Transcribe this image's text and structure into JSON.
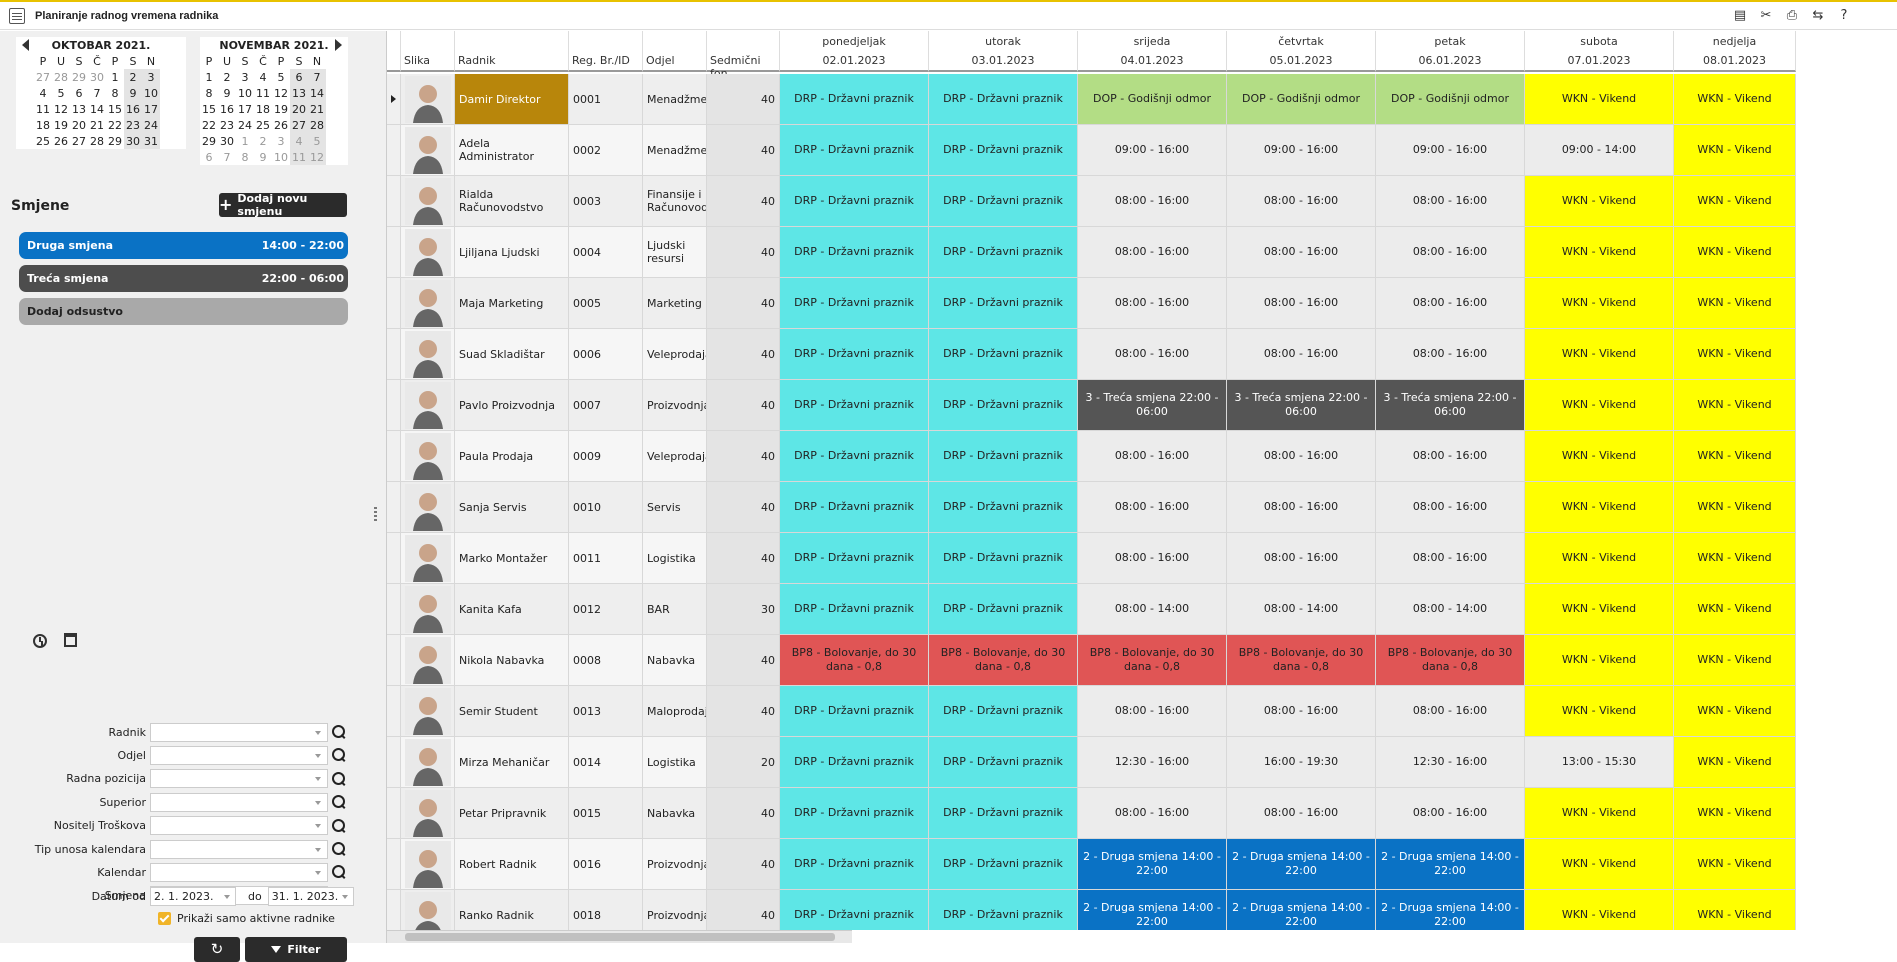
{
  "window": {
    "title": "Planiranje radnog vremena radnika"
  },
  "toolbar_icons": [
    "document-icon",
    "tools-icon",
    "print-icon",
    "transfer-icon",
    "help-icon"
  ],
  "toolbar_glyphs": [
    "▤",
    "✂",
    "⎙",
    "⇆",
    "?"
  ],
  "calendars": [
    {
      "title": "OKTOBAR 2021.",
      "weekdays": [
        "P",
        "U",
        "S",
        "Č",
        "P",
        "S",
        "N"
      ],
      "weeks": [
        [
          "27",
          "28",
          "29",
          "30",
          "1",
          "2",
          "3"
        ],
        [
          "4",
          "5",
          "6",
          "7",
          "8",
          "9",
          "10"
        ],
        [
          "11",
          "12",
          "13",
          "14",
          "15",
          "16",
          "17"
        ],
        [
          "18",
          "19",
          "20",
          "21",
          "22",
          "23",
          "24"
        ],
        [
          "25",
          "26",
          "27",
          "28",
          "29",
          "30",
          "31"
        ]
      ]
    },
    {
      "title": "NOVEMBAR 2021.",
      "weekdays": [
        "P",
        "U",
        "S",
        "Č",
        "P",
        "S",
        "N"
      ],
      "weeks": [
        [
          "1",
          "2",
          "3",
          "4",
          "5",
          "6",
          "7"
        ],
        [
          "8",
          "9",
          "10",
          "11",
          "12",
          "13",
          "14"
        ],
        [
          "15",
          "16",
          "17",
          "18",
          "19",
          "20",
          "21"
        ],
        [
          "22",
          "23",
          "24",
          "25",
          "26",
          "27",
          "28"
        ],
        [
          "29",
          "30",
          "1",
          "2",
          "3",
          "4",
          "5"
        ],
        [
          "6",
          "7",
          "8",
          "9",
          "10",
          "11",
          "12"
        ]
      ]
    }
  ],
  "shifts_panel": {
    "title": "Smjene",
    "add_button": "Dodaj novu smjenu",
    "shifts": [
      {
        "name": "Druga smjena",
        "time": "14:00 - 22:00",
        "color": "#0a72c5"
      },
      {
        "name": "Treća smjena",
        "time": "22:00 - 06:00",
        "color": "#4d4d4d"
      },
      {
        "name": "Dodaj odsustvo",
        "time": "",
        "color": "#a9a9a9"
      }
    ]
  },
  "filters": {
    "fields": [
      "Radnik",
      "Odjel",
      "Radna pozicija",
      "Superior",
      "Nositelj Troškova",
      "Tip unosa kalendara",
      "Kalendar",
      "Smjena"
    ],
    "date_from_label": "Datum od",
    "date_from": "2. 1. 2023.",
    "date_to_label": "do",
    "date_to": "31. 1. 2023.",
    "active_only_label": "Prikaži samo aktivne radnike",
    "filter_button": "Filter"
  },
  "grid": {
    "columns": {
      "photo": "Slika",
      "name": "Radnik",
      "reg": "Reg. Br./ID",
      "dept": "Odjel",
      "fund": "Sedmični fon"
    },
    "days": [
      {
        "name": "ponedjeljak",
        "date": "02.01.2023"
      },
      {
        "name": "utorak",
        "date": "03.01.2023"
      },
      {
        "name": "srijeda",
        "date": "04.01.2023"
      },
      {
        "name": "četvrtak",
        "date": "05.01.2023"
      },
      {
        "name": "petak",
        "date": "06.01.2023"
      },
      {
        "name": "subota",
        "date": "07.01.2023"
      },
      {
        "name": "nedjelja",
        "date": "08.01.2023"
      }
    ],
    "colors": {
      "drp": "#5ee6e6",
      "dop": "#b3dd85",
      "wkn": "#ffff00",
      "shift3": "#555555",
      "shift2": "#0a72c5",
      "sick": "#e05555",
      "time": "#ececec"
    },
    "rows": [
      {
        "name": "Damir Direktor",
        "reg": "0001",
        "dept": "Menadžment",
        "fund": "40",
        "days": [
          [
            "DRP - Državni praznik",
            "drp"
          ],
          [
            "DRP - Državni praznik",
            "drp"
          ],
          [
            "DOP - Godišnji odmor",
            "dop"
          ],
          [
            "DOP - Godišnji odmor",
            "dop"
          ],
          [
            "DOP - Godišnji odmor",
            "dop"
          ],
          [
            "WKN - Vikend",
            "wkn"
          ],
          [
            "WKN - Vikend",
            "wkn"
          ]
        ]
      },
      {
        "name": "Adela Administrator",
        "reg": "0002",
        "dept": "Menadžment",
        "fund": "40",
        "days": [
          [
            "DRP - Državni praznik",
            "drp"
          ],
          [
            "DRP - Državni praznik",
            "drp"
          ],
          [
            "09:00 - 16:00",
            "time"
          ],
          [
            "09:00 - 16:00",
            "time"
          ],
          [
            "09:00 - 16:00",
            "time"
          ],
          [
            "09:00 - 14:00",
            "time"
          ],
          [
            "WKN - Vikend",
            "wkn"
          ]
        ]
      },
      {
        "name": "Rialda Računovodstvo",
        "reg": "0003",
        "dept": "Finansije i Računovodstvo",
        "fund": "40",
        "days": [
          [
            "DRP - Državni praznik",
            "drp"
          ],
          [
            "DRP - Državni praznik",
            "drp"
          ],
          [
            "08:00 - 16:00",
            "time"
          ],
          [
            "08:00 - 16:00",
            "time"
          ],
          [
            "08:00 - 16:00",
            "time"
          ],
          [
            "WKN - Vikend",
            "wkn"
          ],
          [
            "WKN - Vikend",
            "wkn"
          ]
        ]
      },
      {
        "name": "Ljiljana Ljudski",
        "reg": "0004",
        "dept": "Ljudski resursi",
        "fund": "40",
        "days": [
          [
            "DRP - Državni praznik",
            "drp"
          ],
          [
            "DRP - Državni praznik",
            "drp"
          ],
          [
            "08:00 - 16:00",
            "time"
          ],
          [
            "08:00 - 16:00",
            "time"
          ],
          [
            "08:00 - 16:00",
            "time"
          ],
          [
            "WKN - Vikend",
            "wkn"
          ],
          [
            "WKN - Vikend",
            "wkn"
          ]
        ]
      },
      {
        "name": "Maja Marketing",
        "reg": "0005",
        "dept": "Marketing",
        "fund": "40",
        "days": [
          [
            "DRP - Državni praznik",
            "drp"
          ],
          [
            "DRP - Državni praznik",
            "drp"
          ],
          [
            "08:00 - 16:00",
            "time"
          ],
          [
            "08:00 - 16:00",
            "time"
          ],
          [
            "08:00 - 16:00",
            "time"
          ],
          [
            "WKN - Vikend",
            "wkn"
          ],
          [
            "WKN - Vikend",
            "wkn"
          ]
        ]
      },
      {
        "name": "Suad Skladištar",
        "reg": "0006",
        "dept": "Veleprodaja",
        "fund": "40",
        "days": [
          [
            "DRP - Državni praznik",
            "drp"
          ],
          [
            "DRP - Državni praznik",
            "drp"
          ],
          [
            "08:00 - 16:00",
            "time"
          ],
          [
            "08:00 - 16:00",
            "time"
          ],
          [
            "08:00 - 16:00",
            "time"
          ],
          [
            "WKN - Vikend",
            "wkn"
          ],
          [
            "WKN - Vikend",
            "wkn"
          ]
        ]
      },
      {
        "name": "Pavlo Proizvodnja",
        "reg": "0007",
        "dept": "Proizvodnja",
        "fund": "40",
        "days": [
          [
            "DRP - Državni praznik",
            "drp"
          ],
          [
            "DRP - Državni praznik",
            "drp"
          ],
          [
            "3 - Treća smjena 22:00 - 06:00",
            "shift3"
          ],
          [
            "3 - Treća smjena 22:00 - 06:00",
            "shift3"
          ],
          [
            "3 - Treća smjena 22:00 - 06:00",
            "shift3"
          ],
          [
            "WKN - Vikend",
            "wkn"
          ],
          [
            "WKN - Vikend",
            "wkn"
          ]
        ]
      },
      {
        "name": "Paula Prodaja",
        "reg": "0009",
        "dept": "Veleprodaja",
        "fund": "40",
        "days": [
          [
            "DRP - Državni praznik",
            "drp"
          ],
          [
            "DRP - Državni praznik",
            "drp"
          ],
          [
            "08:00 - 16:00",
            "time"
          ],
          [
            "08:00 - 16:00",
            "time"
          ],
          [
            "08:00 - 16:00",
            "time"
          ],
          [
            "WKN - Vikend",
            "wkn"
          ],
          [
            "WKN - Vikend",
            "wkn"
          ]
        ]
      },
      {
        "name": "Sanja Servis",
        "reg": "0010",
        "dept": "Servis",
        "fund": "40",
        "days": [
          [
            "DRP - Državni praznik",
            "drp"
          ],
          [
            "DRP - Državni praznik",
            "drp"
          ],
          [
            "08:00 - 16:00",
            "time"
          ],
          [
            "08:00 - 16:00",
            "time"
          ],
          [
            "08:00 - 16:00",
            "time"
          ],
          [
            "WKN - Vikend",
            "wkn"
          ],
          [
            "WKN - Vikend",
            "wkn"
          ]
        ]
      },
      {
        "name": "Marko Montažer",
        "reg": "0011",
        "dept": "Logistika",
        "fund": "40",
        "days": [
          [
            "DRP - Državni praznik",
            "drp"
          ],
          [
            "DRP - Državni praznik",
            "drp"
          ],
          [
            "08:00 - 16:00",
            "time"
          ],
          [
            "08:00 - 16:00",
            "time"
          ],
          [
            "08:00 - 16:00",
            "time"
          ],
          [
            "WKN - Vikend",
            "wkn"
          ],
          [
            "WKN - Vikend",
            "wkn"
          ]
        ]
      },
      {
        "name": "Kanita Kafa",
        "reg": "0012",
        "dept": "BAR",
        "fund": "30",
        "days": [
          [
            "DRP - Državni praznik",
            "drp"
          ],
          [
            "DRP - Državni praznik",
            "drp"
          ],
          [
            "08:00 - 14:00",
            "time"
          ],
          [
            "08:00 - 14:00",
            "time"
          ],
          [
            "08:00 - 14:00",
            "time"
          ],
          [
            "WKN - Vikend",
            "wkn"
          ],
          [
            "WKN - Vikend",
            "wkn"
          ]
        ]
      },
      {
        "name": "Nikola Nabavka",
        "reg": "0008",
        "dept": "Nabavka",
        "fund": "40",
        "days": [
          [
            "BP8 - Bolovanje, do 30 dana - 0,8",
            "sick"
          ],
          [
            "BP8 - Bolovanje, do 30 dana - 0,8",
            "sick"
          ],
          [
            "BP8 - Bolovanje, do 30 dana - 0,8",
            "sick"
          ],
          [
            "BP8 - Bolovanje, do 30 dana - 0,8",
            "sick"
          ],
          [
            "BP8 - Bolovanje, do 30 dana - 0,8",
            "sick"
          ],
          [
            "WKN - Vikend",
            "wkn"
          ],
          [
            "WKN - Vikend",
            "wkn"
          ]
        ]
      },
      {
        "name": "Semir Student",
        "reg": "0013",
        "dept": "Maloprodaja",
        "fund": "40",
        "days": [
          [
            "DRP - Državni praznik",
            "drp"
          ],
          [
            "DRP - Državni praznik",
            "drp"
          ],
          [
            "08:00 - 16:00",
            "time"
          ],
          [
            "08:00 - 16:00",
            "time"
          ],
          [
            "08:00 - 16:00",
            "time"
          ],
          [
            "WKN - Vikend",
            "wkn"
          ],
          [
            "WKN - Vikend",
            "wkn"
          ]
        ]
      },
      {
        "name": "Mirza Mehaničar",
        "reg": "0014",
        "dept": "Logistika",
        "fund": "20",
        "days": [
          [
            "DRP - Državni praznik",
            "drp"
          ],
          [
            "DRP - Državni praznik",
            "drp"
          ],
          [
            "12:30 - 16:00",
            "time"
          ],
          [
            "16:00 - 19:30",
            "time"
          ],
          [
            "12:30 - 16:00",
            "time"
          ],
          [
            "13:00 - 15:30",
            "time"
          ],
          [
            "WKN - Vikend",
            "wkn"
          ]
        ]
      },
      {
        "name": "Petar Pripravnik",
        "reg": "0015",
        "dept": "Nabavka",
        "fund": "40",
        "days": [
          [
            "DRP - Državni praznik",
            "drp"
          ],
          [
            "DRP - Državni praznik",
            "drp"
          ],
          [
            "08:00 - 16:00",
            "time"
          ],
          [
            "08:00 - 16:00",
            "time"
          ],
          [
            "08:00 - 16:00",
            "time"
          ],
          [
            "WKN - Vikend",
            "wkn"
          ],
          [
            "WKN - Vikend",
            "wkn"
          ]
        ]
      },
      {
        "name": "Robert Radnik",
        "reg": "0016",
        "dept": "Proizvodnja",
        "fund": "40",
        "days": [
          [
            "DRP - Državni praznik",
            "drp"
          ],
          [
            "DRP - Državni praznik",
            "drp"
          ],
          [
            "2 - Druga smjena 14:00 - 22:00",
            "shift2"
          ],
          [
            "2 - Druga smjena 14:00 - 22:00",
            "shift2"
          ],
          [
            "2 - Druga smjena 14:00 - 22:00",
            "shift2"
          ],
          [
            "WKN - Vikend",
            "wkn"
          ],
          [
            "WKN - Vikend",
            "wkn"
          ]
        ]
      },
      {
        "name": "Ranko Radnik",
        "reg": "0018",
        "dept": "Proizvodnja",
        "fund": "40",
        "days": [
          [
            "DRP - Državni praznik",
            "drp"
          ],
          [
            "DRP - Državni praznik",
            "drp"
          ],
          [
            "2 - Druga smjena 14:00 - 22:00",
            "shift2"
          ],
          [
            "2 - Druga smjena 14:00 - 22:00",
            "shift2"
          ],
          [
            "2 - Druga smjena 14:00 - 22:00",
            "shift2"
          ],
          [
            "WKN - Vikend",
            "wkn"
          ],
          [
            "WKN - Vikend",
            "wkn"
          ]
        ]
      }
    ]
  }
}
